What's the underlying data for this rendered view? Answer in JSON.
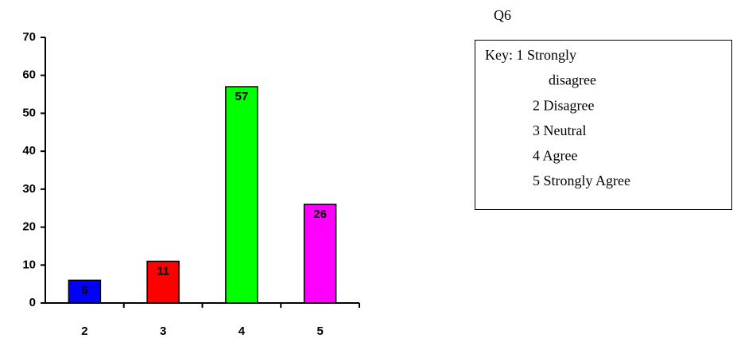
{
  "chart_data": {
    "type": "bar",
    "title": "Q6",
    "categories": [
      "2",
      "3",
      "4",
      "5"
    ],
    "values": [
      6,
      11,
      57,
      26
    ],
    "colors": [
      "#0000ff",
      "#ff0000",
      "#00ff00",
      "#ff00ff"
    ],
    "ylim": [
      0,
      70
    ],
    "yticks": [
      0,
      10,
      20,
      30,
      40,
      50,
      60,
      70
    ],
    "grid": false,
    "key": [
      "Key: 1 Strongly",
      "disagree",
      "2 Disagree",
      "3 Neutral",
      "4 Agree",
      "5 Strongly Agree"
    ]
  }
}
